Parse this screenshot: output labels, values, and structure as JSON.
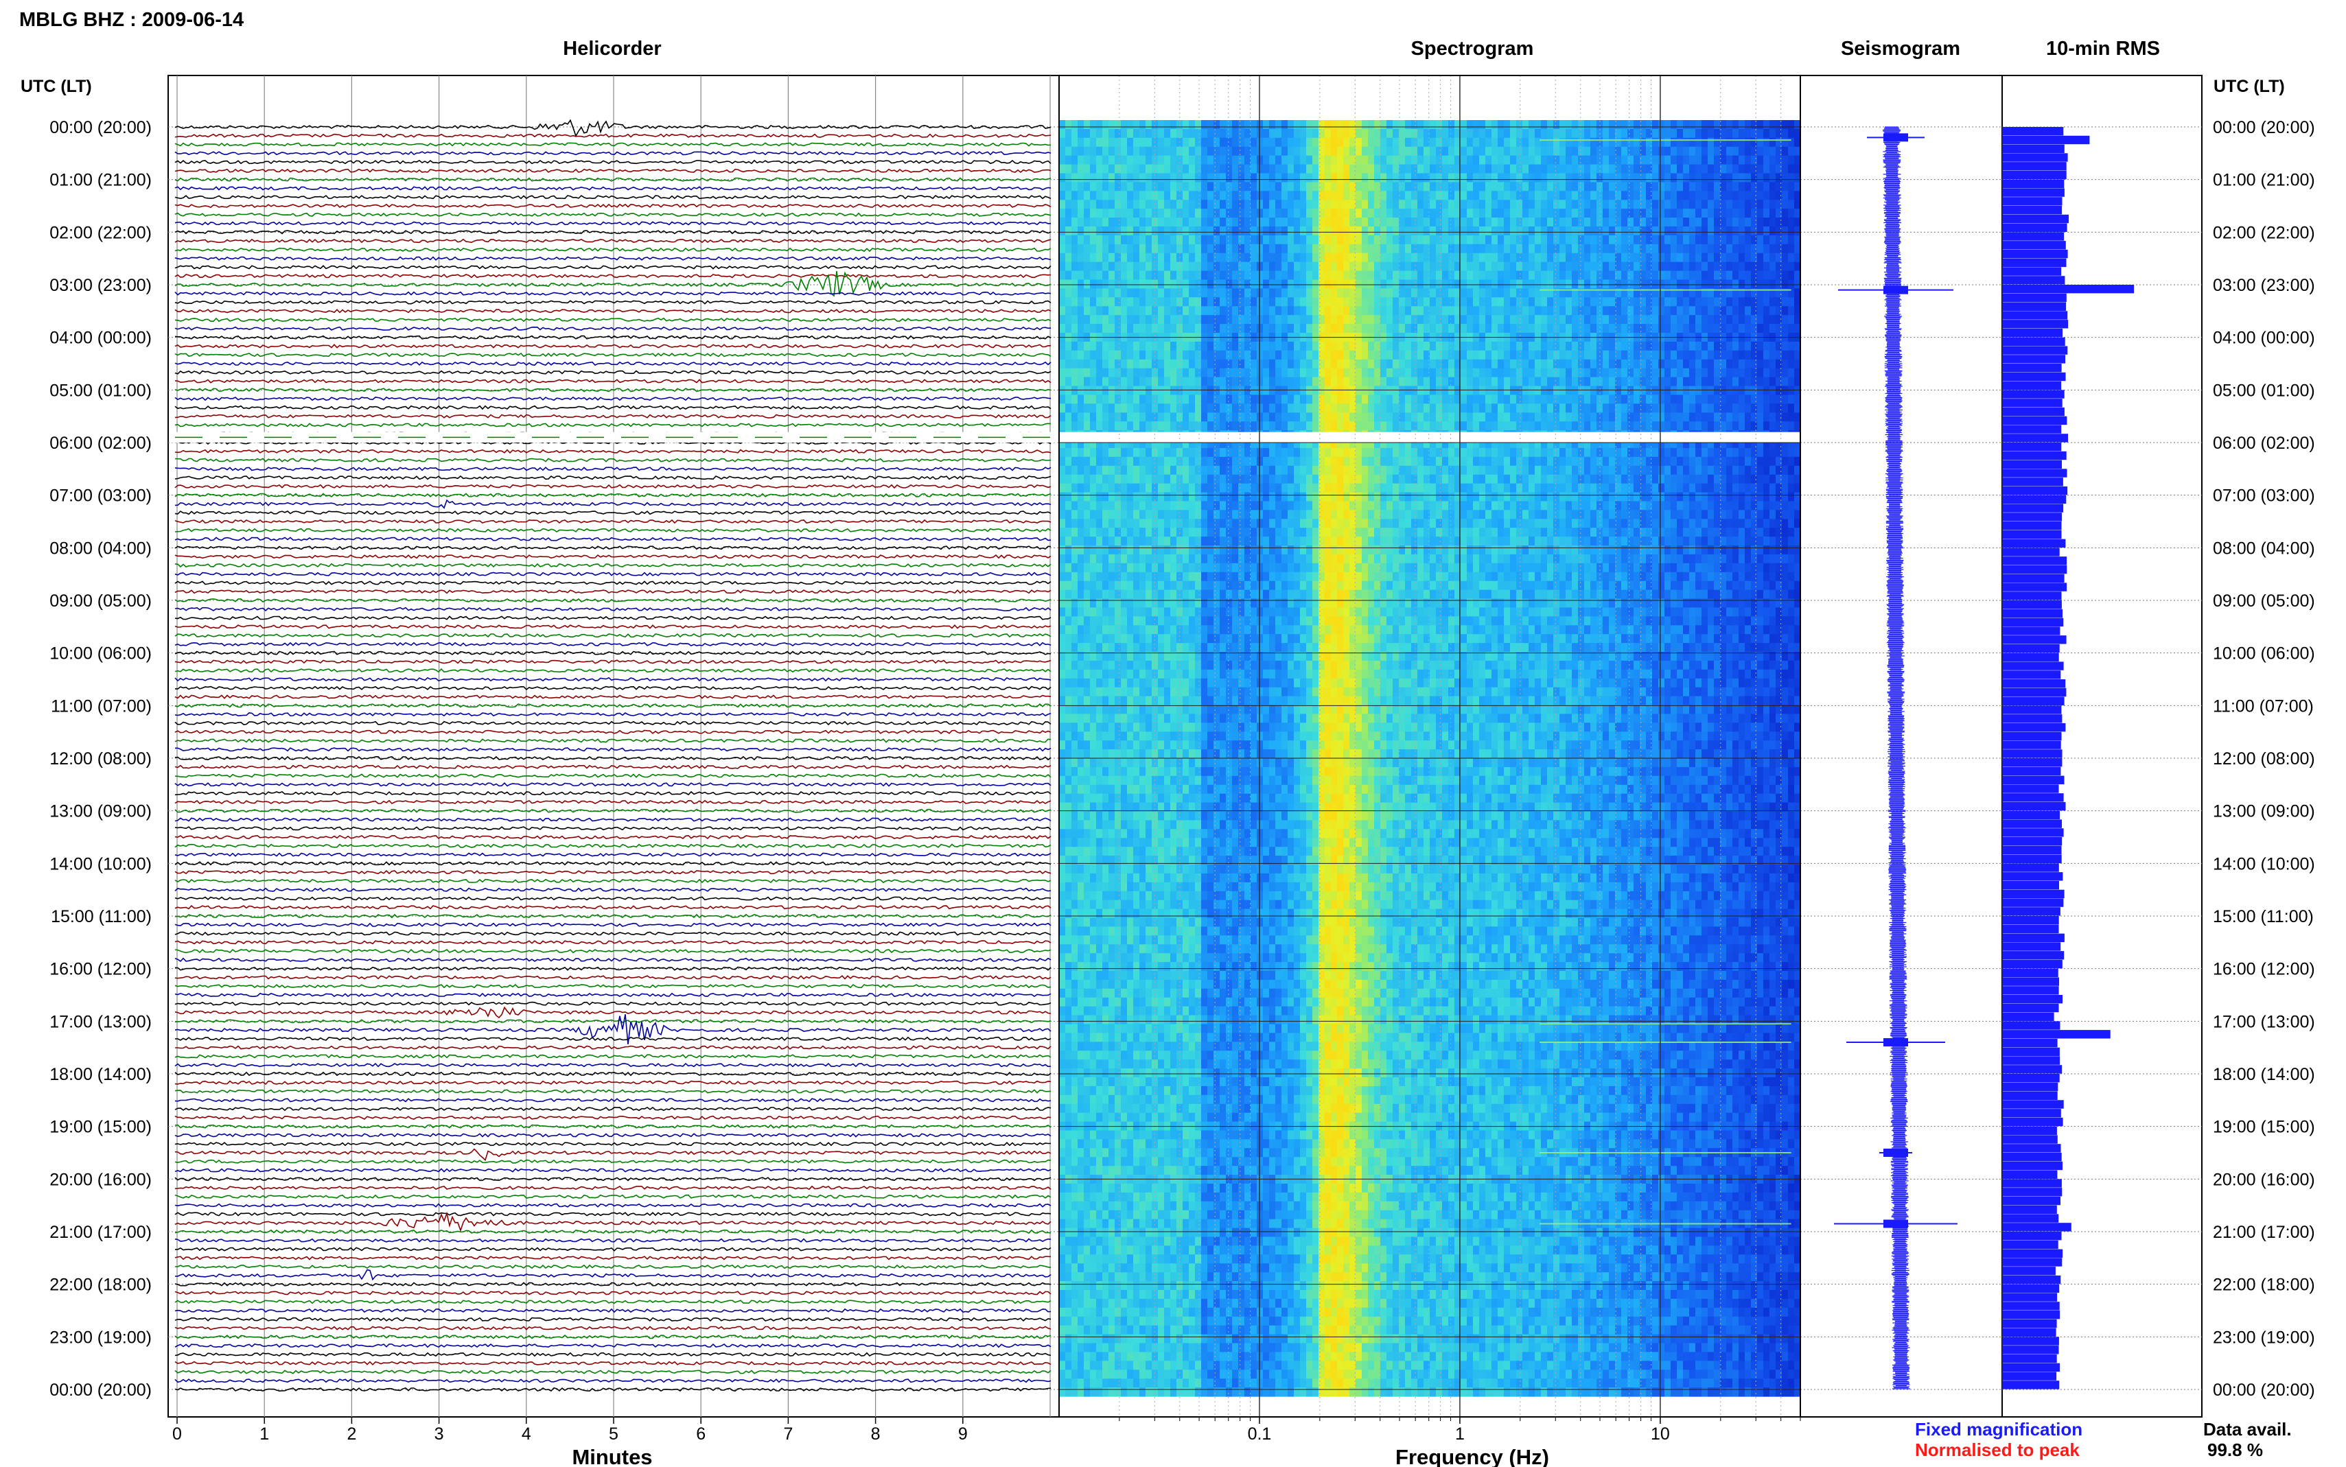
{
  "header": {
    "station": "MBLG BHZ : 2009-06-14",
    "axis_tz_left": "UTC (LT)",
    "axis_tz_right": "UTC (LT)"
  },
  "panels": {
    "helicorder": "Helicorder",
    "spectrogram": "Spectrogram",
    "seismogram": "Seismogram",
    "rms": "10-min RMS"
  },
  "xlabels": {
    "helicorder": "Minutes",
    "spectrogram": "Frequency (Hz)"
  },
  "legend": {
    "fixed": "Fixed magnification",
    "normalised": "Normalised to peak",
    "fixed_color": "#1a1aff",
    "normalised_color": "#ff1a1a"
  },
  "availability": {
    "label": "Data avail.",
    "value": "99.8 %"
  },
  "time_labels": [
    "00:00 (20:00)",
    "01:00 (21:00)",
    "02:00 (22:00)",
    "03:00 (23:00)",
    "04:00 (00:00)",
    "05:00 (01:00)",
    "06:00 (02:00)",
    "07:00 (03:00)",
    "08:00 (04:00)",
    "09:00 (05:00)",
    "10:00 (06:00)",
    "11:00 (07:00)",
    "12:00 (08:00)",
    "13:00 (09:00)",
    "14:00 (10:00)",
    "15:00 (11:00)",
    "16:00 (12:00)",
    "17:00 (13:00)",
    "18:00 (14:00)",
    "19:00 (15:00)",
    "20:00 (16:00)",
    "21:00 (17:00)",
    "22:00 (18:00)",
    "23:00 (19:00)",
    "00:00 (20:00)"
  ],
  "chart_data": [
    {
      "type": "line",
      "panel": "helicorder",
      "xlabel": "Minutes",
      "x_ticks": [
        0,
        1,
        2,
        3,
        4,
        5,
        6,
        7,
        8,
        9
      ],
      "xlim": [
        0,
        10
      ],
      "rows_per_hour": 6,
      "trace_colors": [
        "#000000",
        "#8b0000",
        "#008000",
        "#0000a0"
      ],
      "events": [
        {
          "hour": 0.0,
          "start_min": 4.0,
          "end_min": 5.2,
          "amp": 4
        },
        {
          "hour": 3.0,
          "start_min": 6.9,
          "end_min": 8.2,
          "amp": 6
        },
        {
          "hour": 7.2,
          "start_min": 2.9,
          "end_min": 3.2,
          "amp": 2
        },
        {
          "hour": 16.9,
          "start_min": 3.0,
          "end_min": 4.1,
          "amp": 3
        },
        {
          "hour": 17.2,
          "start_min": 4.5,
          "end_min": 5.7,
          "amp": 7
        },
        {
          "hour": 19.5,
          "start_min": 3.3,
          "end_min": 3.8,
          "amp": 3
        },
        {
          "hour": 20.8,
          "start_min": 2.2,
          "end_min": 3.9,
          "amp": 4
        },
        {
          "hour": 21.85,
          "start_min": 2.05,
          "end_min": 2.3,
          "amp": 3
        }
      ],
      "gap_hours": [
        5.8,
        6.0
      ],
      "hours": 24
    },
    {
      "type": "heatmap",
      "panel": "spectrogram",
      "xlabel": "Frequency (Hz)",
      "x_scale": "log",
      "xlim": [
        0.01,
        50
      ],
      "x_tick_labels": [
        "0.1",
        "1",
        "10"
      ],
      "x_tick_values": [
        0.1,
        1,
        10
      ],
      "gap_hours": [
        5.8,
        6.0
      ],
      "event_lines_hours": [
        0.25,
        3.1,
        17.05,
        17.4,
        19.5,
        20.85
      ]
    },
    {
      "type": "line",
      "panel": "seismogram",
      "spikes": [
        {
          "hour": 0.2,
          "amp": 0.35
        },
        {
          "hour": 3.1,
          "amp": 0.7
        },
        {
          "hour": 17.4,
          "amp": 0.6
        },
        {
          "hour": 19.5,
          "amp": 0.2
        },
        {
          "hour": 20.85,
          "amp": 0.75
        }
      ]
    },
    {
      "type": "bar",
      "panel": "10-min RMS",
      "hours": 24,
      "base_level": 0.62,
      "peaks": [
        {
          "hour": 0.2,
          "value": 0.85
        },
        {
          "hour": 3.0,
          "value": 1.3
        },
        {
          "hour": 16.9,
          "value": 0.55
        },
        {
          "hour": 17.2,
          "value": 1.15
        },
        {
          "hour": 20.85,
          "value": 0.75
        }
      ],
      "color": "#1a1aff"
    }
  ]
}
